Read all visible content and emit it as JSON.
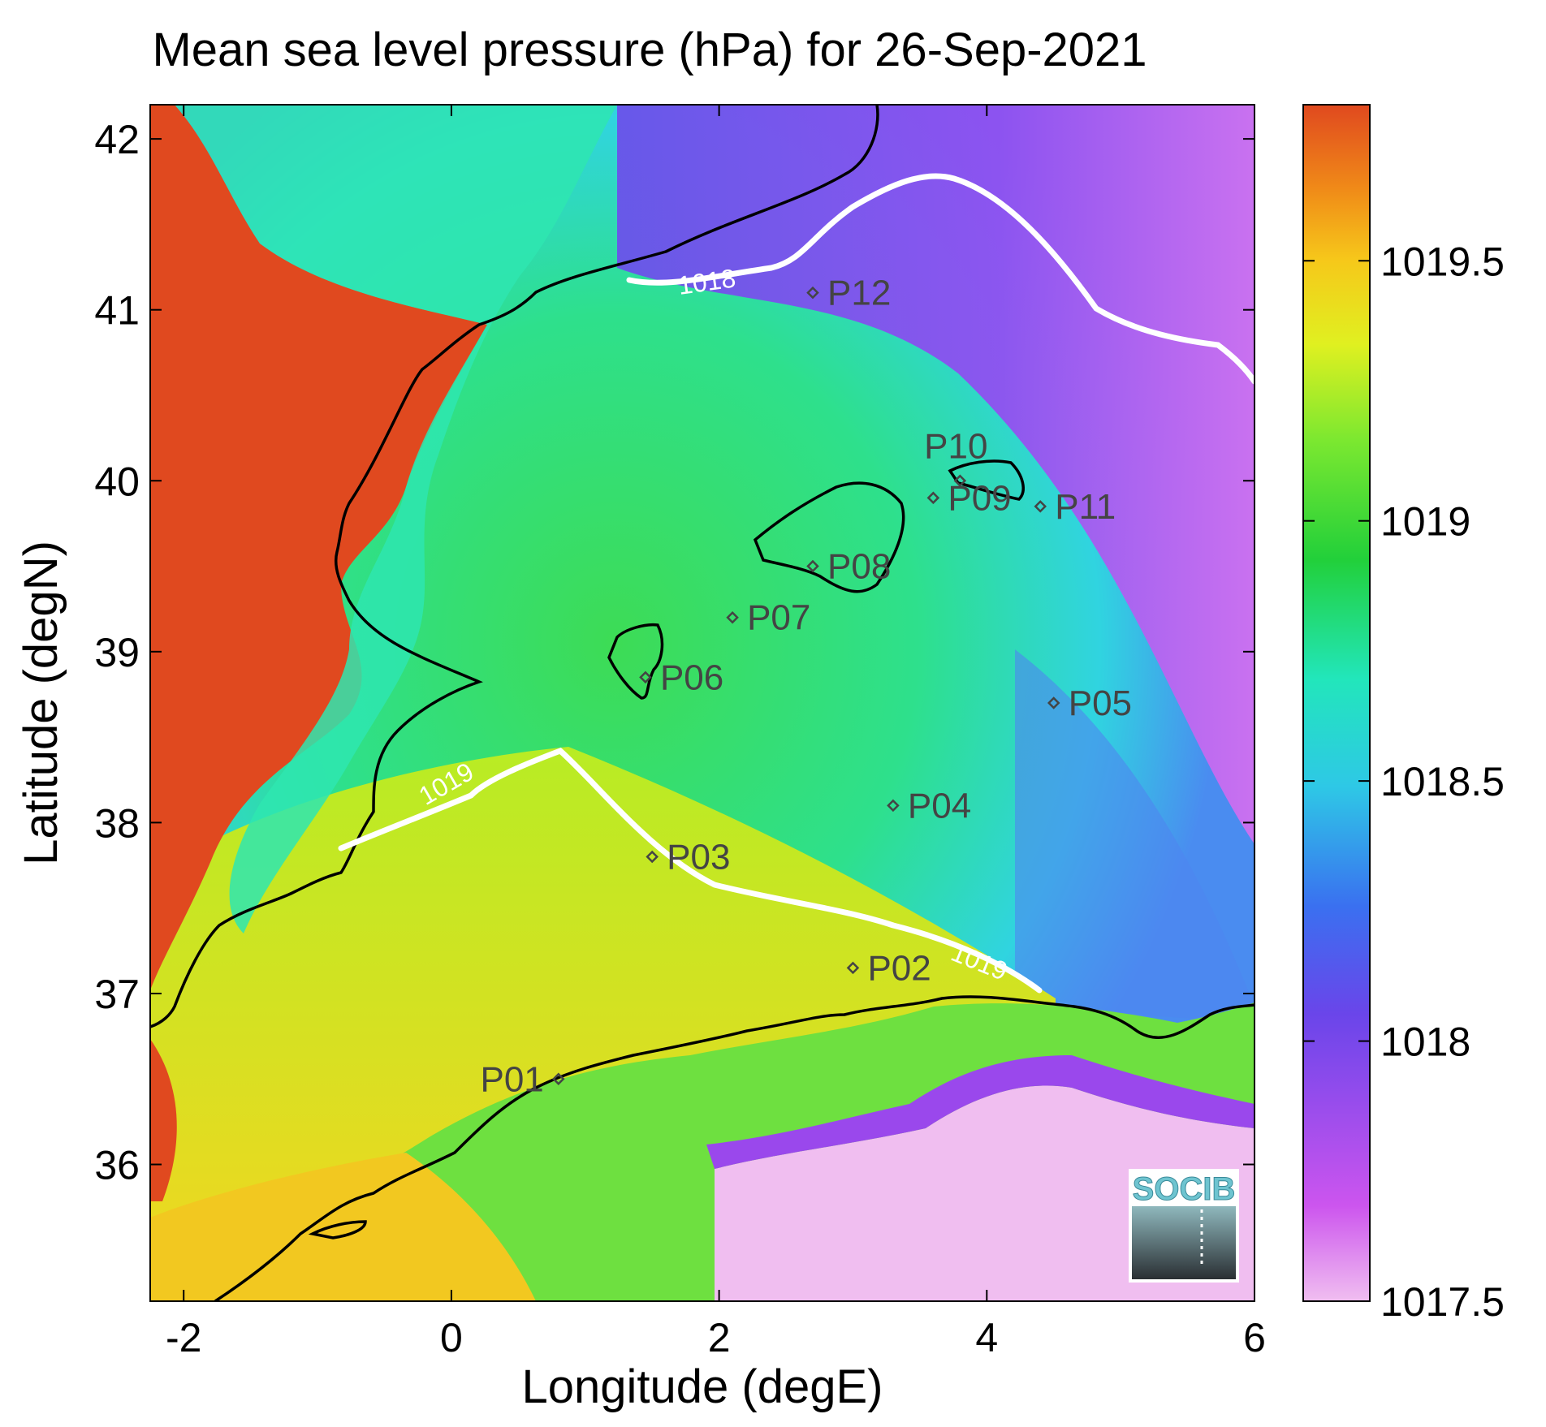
{
  "title": "Mean sea level pressure (hPa) for 26-Sep-2021",
  "axes": {
    "xlabel": "Longitude (degE)",
    "ylabel": "Latitude (degN)",
    "xticks": [
      "-2",
      "0",
      "2",
      "4",
      "6"
    ],
    "yticks": [
      "42",
      "41",
      "40",
      "39",
      "38",
      "37",
      "36"
    ]
  },
  "colorbar": {
    "ticks": [
      "1019.5",
      "1019",
      "1018.5",
      "1018",
      "1017.5"
    ],
    "range": [
      1017.5,
      1019.8
    ]
  },
  "contours": [
    {
      "label": "1018"
    },
    {
      "label": "1019"
    },
    {
      "label": "1019"
    }
  ],
  "stations": [
    {
      "name": "P01",
      "lon": 0.8,
      "lat": 36.5
    },
    {
      "name": "P02",
      "lon": 3.0,
      "lat": 37.15
    },
    {
      "name": "P03",
      "lon": 1.5,
      "lat": 37.8
    },
    {
      "name": "P04",
      "lon": 3.3,
      "lat": 38.1
    },
    {
      "name": "P05",
      "lon": 4.5,
      "lat": 38.7
    },
    {
      "name": "P06",
      "lon": 1.45,
      "lat": 38.85
    },
    {
      "name": "P07",
      "lon": 2.1,
      "lat": 39.2
    },
    {
      "name": "P08",
      "lon": 2.7,
      "lat": 39.5
    },
    {
      "name": "P09",
      "lon": 3.6,
      "lat": 39.9
    },
    {
      "name": "P10",
      "lon": 3.8,
      "lat": 40.0
    },
    {
      "name": "P11",
      "lon": 4.4,
      "lat": 39.85
    },
    {
      "name": "P12",
      "lon": 2.7,
      "lat": 41.1
    }
  ],
  "logo": {
    "text": "SOCIB"
  },
  "colors": {
    "land_high": "#e0491f",
    "sea_green": "#33dd55",
    "sea_cyan": "#22e6cc",
    "low_purple": "#8040ee",
    "lowest_pink": "#eeb6ee",
    "yellow": "#e8f020",
    "contour": "#ffffff",
    "coast": "#000000"
  }
}
